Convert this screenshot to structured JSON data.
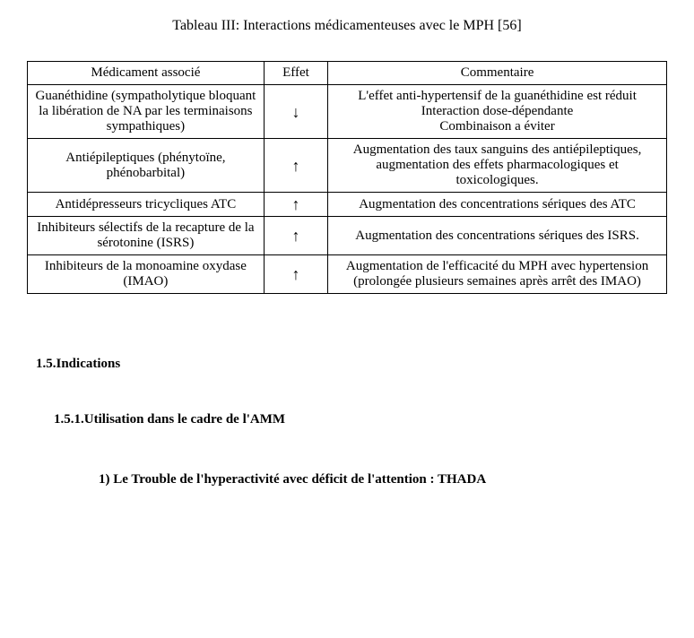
{
  "title": "Tableau  III: Interactions médicamenteuses avec le MPH [56]",
  "table": {
    "type": "table",
    "columns": [
      "Médicament associé",
      "Effet",
      "Commentaire"
    ],
    "rows": [
      {
        "med": "Guanéthidine (sympatholytique bloquant la libération de NA par les terminaisons sympathiques)",
        "effet": "↓",
        "comment": "L'effet anti-hypertensif de la guanéthidine est réduit\nInteraction dose-dépendante\nCombinaison a éviter"
      },
      {
        "med": "Antiépileptiques (phénytoïne, phénobarbital)",
        "effet": "↑",
        "comment": "Augmentation des taux sanguins des antiépileptiques, augmentation des effets pharmacologiques et toxicologiques."
      },
      {
        "med": "Antidépresseurs tricycliques ATC",
        "effet": "↑",
        "comment": "Augmentation des concentrations sériques des ATC"
      },
      {
        "med": "Inhibiteurs sélectifs de la recapture de la sérotonine (ISRS)",
        "effet": "↑",
        "comment": "Augmentation des concentrations sériques des ISRS."
      },
      {
        "med": "Inhibiteurs de la monoamine oxydase (IMAO)",
        "effet": "↑",
        "comment": "Augmentation de l'efficacité du MPH avec hypertension (prolongée plusieurs semaines après arrêt des IMAO)"
      }
    ]
  },
  "headings": {
    "h1": "1.5.Indications",
    "h2": "1.5.1.Utilisation dans le cadre de l'AMM",
    "h3": "1)   Le Trouble de l'hyperactivité avec déficit de l'attention : THADA"
  },
  "style": {
    "background_color": "#ffffff",
    "text_color": "#000000",
    "border_color": "#000000",
    "font_family": "Times New Roman",
    "body_fontsize": 15,
    "title_fontsize": 16
  }
}
